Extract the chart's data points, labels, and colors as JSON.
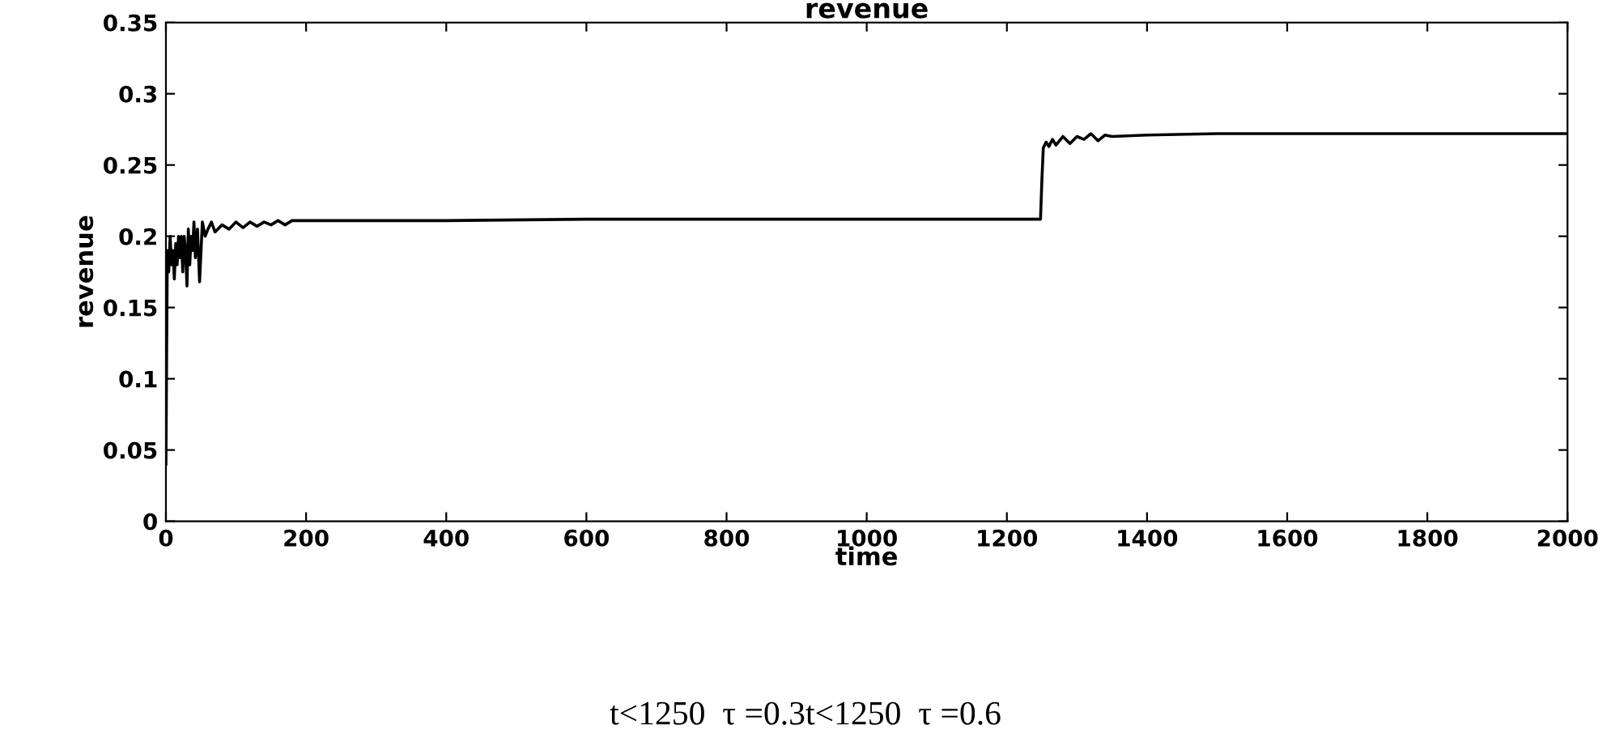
{
  "chart_data": {
    "type": "line",
    "title": "revenue",
    "xlabel": "time",
    "ylabel": "revenue",
    "x": [
      0,
      2,
      4,
      6,
      8,
      10,
      12,
      14,
      16,
      18,
      20,
      22,
      24,
      26,
      28,
      30,
      32,
      34,
      36,
      38,
      40,
      42,
      45,
      48,
      52,
      56,
      60,
      65,
      70,
      80,
      90,
      100,
      110,
      120,
      130,
      140,
      150,
      160,
      170,
      180,
      200,
      400,
      600,
      800,
      1000,
      1248,
      1250,
      1252,
      1256,
      1260,
      1265,
      1270,
      1280,
      1290,
      1300,
      1310,
      1320,
      1330,
      1340,
      1350,
      1400,
      1500,
      1600,
      2000
    ],
    "series": [
      {
        "color": "#000000",
        "values": [
          0.04,
          0.19,
          0.175,
          0.2,
          0.18,
          0.19,
          0.17,
          0.195,
          0.18,
          0.2,
          0.185,
          0.2,
          0.175,
          0.2,
          0.19,
          0.165,
          0.205,
          0.18,
          0.2,
          0.19,
          0.21,
          0.185,
          0.205,
          0.168,
          0.21,
          0.2,
          0.205,
          0.21,
          0.203,
          0.208,
          0.205,
          0.21,
          0.206,
          0.21,
          0.207,
          0.21,
          0.208,
          0.211,
          0.208,
          0.211,
          0.211,
          0.211,
          0.212,
          0.212,
          0.212,
          0.212,
          0.24,
          0.262,
          0.266,
          0.263,
          0.268,
          0.264,
          0.27,
          0.265,
          0.27,
          0.268,
          0.272,
          0.267,
          0.271,
          0.27,
          0.271,
          0.272,
          0.272,
          0.272
        ]
      }
    ],
    "xlim": [
      0,
      2000
    ],
    "xticks": [
      0,
      200,
      400,
      600,
      800,
      1000,
      1200,
      1400,
      1600,
      1800,
      2000
    ],
    "ylim": [
      0,
      0.35
    ],
    "yticks": [
      0,
      0.05,
      0.1,
      0.15,
      0.2,
      0.25,
      0.3,
      0.35
    ],
    "grid": false,
    "annotations": [
      "t<1250  τ =0.3t<1250  τ =0.6"
    ]
  }
}
